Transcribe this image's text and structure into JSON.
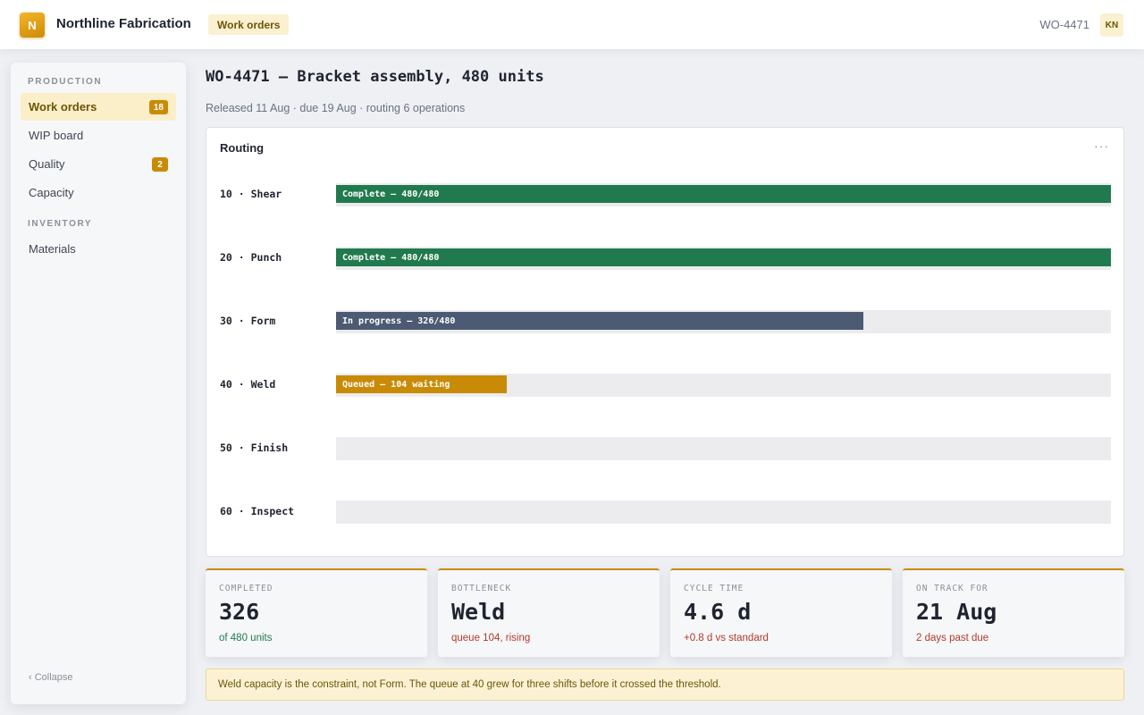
{
  "header": {
    "logo_letter": "N",
    "app_name": "Northline Fabrication",
    "section_tag": "Work orders",
    "work_order_id": "WO-4471",
    "user_initials": "KN"
  },
  "sidebar": {
    "sections": [
      {
        "label": "PRODUCTION",
        "items": [
          {
            "label": "Work orders",
            "badge": "18",
            "active": true
          },
          {
            "label": "WIP board"
          },
          {
            "label": "Quality",
            "badge": "2"
          },
          {
            "label": "Capacity"
          }
        ]
      },
      {
        "label": "INVENTORY",
        "items": [
          {
            "label": "Materials"
          }
        ]
      }
    ],
    "collapse_label": "‹ Collapse"
  },
  "page": {
    "title": "WO-4471 — Bracket assembly, 480 units",
    "subtitle": "Released 11 Aug · due 19 Aug · routing 6 operations"
  },
  "routing": {
    "title": "Routing",
    "menu_icon": "more-horizontal-icon",
    "operations": [
      {
        "label": "10 · Shear",
        "status_text": "Complete — 480/480",
        "progress": 1.0,
        "color": "#217a4e"
      },
      {
        "label": "20 · Punch",
        "status_text": "Complete — 480/480",
        "progress": 1.0,
        "color": "#217a4e"
      },
      {
        "label": "30 · Form",
        "status_text": "In progress — 326/480",
        "progress": 0.68,
        "color": "#4c5a73"
      },
      {
        "label": "40 · Weld",
        "status_text": "Queued — 104 waiting",
        "progress": 0.22,
        "color": "#c98b06"
      },
      {
        "label": "50 · Finish",
        "status_text": "",
        "progress": 0,
        "color": "#ececee"
      },
      {
        "label": "60 · Inspect",
        "status_text": "",
        "progress": 0,
        "color": "#ececee"
      }
    ]
  },
  "kpis": [
    {
      "label": "COMPLETED",
      "value": "326",
      "note": "of 480 units",
      "note_color": "#217a4e"
    },
    {
      "label": "BOTTLENECK",
      "value": "Weld",
      "note": "queue 104, rising",
      "note_color": "#b23a2a"
    },
    {
      "label": "CYCLE TIME",
      "value": "4.6 d",
      "note": "+0.8 d vs standard",
      "note_color": "#b23a2a"
    },
    {
      "label": "ON TRACK FOR",
      "value": "21 Aug",
      "note": "2 days past due",
      "note_color": "#b23a2a"
    }
  ],
  "notice": {
    "text": "Weld capacity is the constraint, not Form. The queue at 40 grew for three shifts before it crossed the threshold."
  }
}
